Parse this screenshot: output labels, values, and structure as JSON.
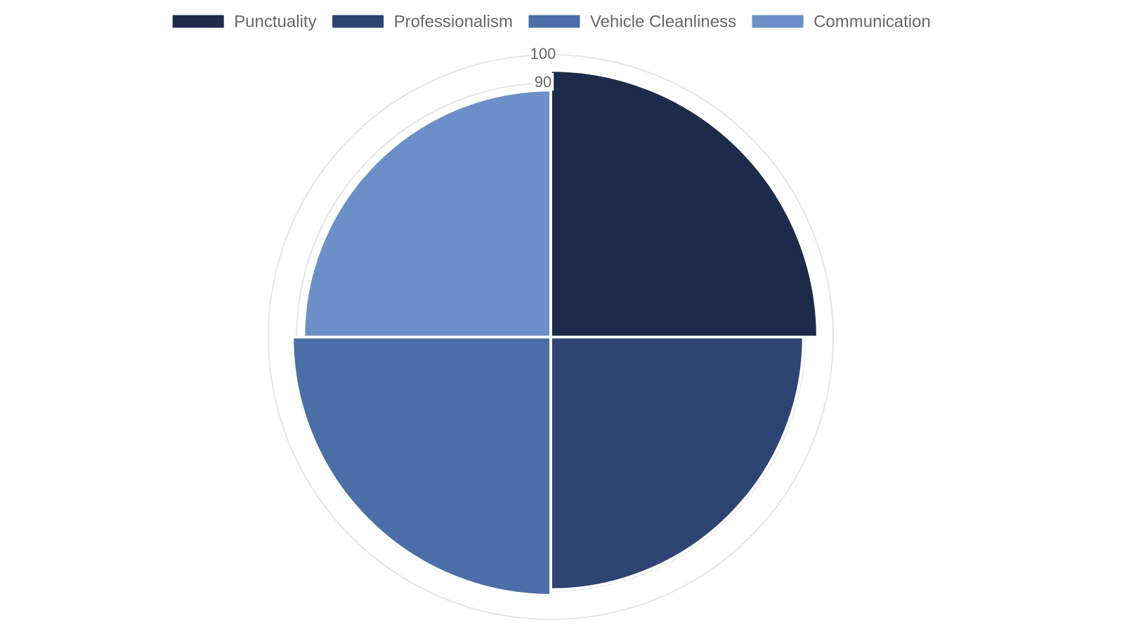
{
  "chart_data": {
    "type": "polarArea",
    "categories": [
      "Punctuality",
      "Professionalism",
      "Vehicle Cleanliness",
      "Communication"
    ],
    "values": [
      94.5,
      89.5,
      91.5,
      87.5
    ],
    "colors": [
      "#1c2b4a",
      "#2e4473",
      "#4a6ea5",
      "#6d8fc7"
    ],
    "ylim": [
      0,
      100
    ],
    "yticks": [
      90,
      100
    ],
    "grid": true,
    "legend": "top"
  }
}
